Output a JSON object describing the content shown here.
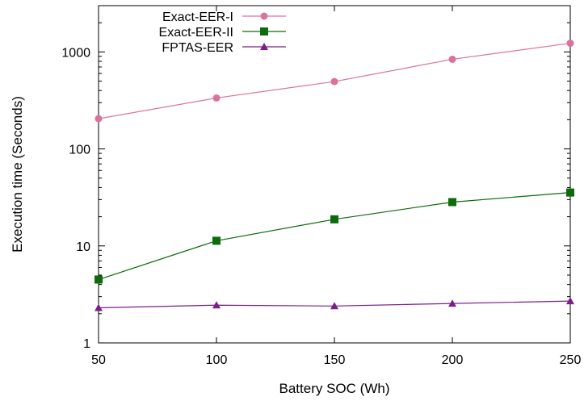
{
  "chart_data": {
    "type": "line",
    "xlabel": "Battery SOC (Wh)",
    "ylabel": "Execution time (Seconds)",
    "x": [
      50,
      100,
      150,
      200,
      250
    ],
    "xlim": [
      50,
      250
    ],
    "xticks": [
      50,
      100,
      150,
      200,
      250
    ],
    "ylim": [
      1,
      3000
    ],
    "yscale": "log",
    "yticks": [
      1,
      10,
      100,
      1000
    ],
    "grid": false,
    "legend_position": "top-left",
    "series": [
      {
        "name": "Exact-EER-I",
        "values": [
          205,
          335,
          495,
          840,
          1230
        ],
        "color": "#d9739b",
        "marker": "circle"
      },
      {
        "name": "Exact-EER-II",
        "values": [
          4.5,
          11.3,
          18.8,
          28.3,
          35.5
        ],
        "color": "#0d6b0d",
        "marker": "square"
      },
      {
        "name": "FPTAS-EER",
        "values": [
          2.3,
          2.45,
          2.4,
          2.55,
          2.7
        ],
        "color": "#7a1f8a",
        "marker": "triangle"
      }
    ]
  }
}
